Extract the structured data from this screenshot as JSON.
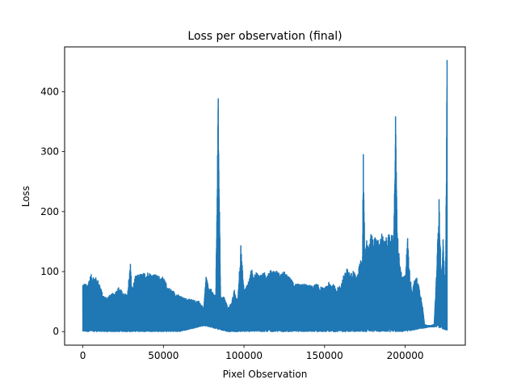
{
  "chart_data": {
    "type": "line",
    "title": "Loss per observation (final)",
    "xlabel": "Pixel Observation",
    "ylabel": "Loss",
    "xlim": [
      -11300,
      237300
    ],
    "ylim": [
      -22.6,
      474.6
    ],
    "x_ticks": [
      0,
      50000,
      100000,
      150000,
      200000
    ],
    "x_tick_labels": [
      "0",
      "50000",
      "100000",
      "150000",
      "200000"
    ],
    "y_ticks": [
      0,
      100,
      200,
      300,
      400
    ],
    "y_tick_labels": [
      "0",
      "100",
      "200",
      "300",
      "400"
    ],
    "grid": false,
    "series": [
      {
        "color": "#1f77b4",
        "envelope": [
          [
            0,
            82
          ],
          [
            2500,
            78
          ],
          [
            5000,
            95
          ],
          [
            7500,
            92
          ],
          [
            10000,
            84
          ],
          [
            12500,
            60
          ],
          [
            15000,
            58
          ],
          [
            17500,
            62
          ],
          [
            20000,
            66
          ],
          [
            22500,
            75
          ],
          [
            25000,
            64
          ],
          [
            27500,
            62
          ],
          [
            29500,
            112
          ],
          [
            30500,
            70
          ],
          [
            32500,
            92
          ],
          [
            35000,
            96
          ],
          [
            37500,
            97
          ],
          [
            40000,
            100
          ],
          [
            42500,
            97
          ],
          [
            45000,
            95
          ],
          [
            47500,
            93
          ],
          [
            50000,
            90
          ],
          [
            52500,
            76
          ],
          [
            55000,
            70
          ],
          [
            57500,
            65
          ],
          [
            60000,
            60
          ],
          [
            62500,
            56
          ],
          [
            65000,
            55
          ],
          [
            67500,
            54
          ],
          [
            70000,
            52
          ],
          [
            72500,
            50
          ],
          [
            75000,
            38
          ],
          [
            76500,
            96
          ],
          [
            78000,
            72
          ],
          [
            80000,
            70
          ],
          [
            82500,
            58
          ],
          [
            84000,
            388
          ],
          [
            85500,
            55
          ],
          [
            87500,
            60
          ],
          [
            90000,
            40
          ],
          [
            92500,
            50
          ],
          [
            94000,
            70
          ],
          [
            96000,
            50
          ],
          [
            98000,
            143
          ],
          [
            100000,
            70
          ],
          [
            102500,
            80
          ],
          [
            104500,
            106
          ],
          [
            106000,
            90
          ],
          [
            107500,
            100
          ],
          [
            110000,
            95
          ],
          [
            112500,
            98
          ],
          [
            115000,
            100
          ],
          [
            117500,
            103
          ],
          [
            120000,
            102
          ],
          [
            122500,
            96
          ],
          [
            125000,
            100
          ],
          [
            127500,
            92
          ],
          [
            130000,
            86
          ],
          [
            132500,
            80
          ],
          [
            135000,
            78
          ],
          [
            137500,
            80
          ],
          [
            140000,
            78
          ],
          [
            142500,
            76
          ],
          [
            145000,
            80
          ],
          [
            147500,
            75
          ],
          [
            150000,
            72
          ],
          [
            152500,
            82
          ],
          [
            155000,
            80
          ],
          [
            157500,
            72
          ],
          [
            160000,
            78
          ],
          [
            162500,
            100
          ],
          [
            164000,
            105
          ],
          [
            166000,
            96
          ],
          [
            168000,
            103
          ],
          [
            170000,
            90
          ],
          [
            172000,
            118
          ],
          [
            173500,
            120
          ],
          [
            174000,
            295
          ],
          [
            175000,
            130
          ],
          [
            176000,
            162
          ],
          [
            177500,
            140
          ],
          [
            179000,
            166
          ],
          [
            180500,
            155
          ],
          [
            182000,
            160
          ],
          [
            184000,
            148
          ],
          [
            185500,
            166
          ],
          [
            187000,
            150
          ],
          [
            188500,
            158
          ],
          [
            190000,
            162
          ],
          [
            191500,
            164
          ],
          [
            193000,
            162
          ],
          [
            194000,
            358
          ],
          [
            195000,
            175
          ],
          [
            196500,
            118
          ],
          [
            198000,
            90
          ],
          [
            200000,
            95
          ],
          [
            201500,
            155
          ],
          [
            203000,
            90
          ],
          [
            204500,
            70
          ],
          [
            206000,
            88
          ],
          [
            207500,
            90
          ],
          [
            209000,
            70
          ],
          [
            210500,
            50
          ],
          [
            212000,
            12
          ],
          [
            214000,
            10
          ],
          [
            216000,
            10
          ],
          [
            218000,
            12
          ],
          [
            219500,
            100
          ],
          [
            221000,
            220
          ],
          [
            222500,
            80
          ],
          [
            223500,
            153
          ],
          [
            225000,
            60
          ],
          [
            226000,
            452
          ]
        ],
        "floor": [
          [
            0,
            0
          ],
          [
            20000,
            0
          ],
          [
            40000,
            0
          ],
          [
            60000,
            0
          ],
          [
            75000,
            10
          ],
          [
            90000,
            0
          ],
          [
            120000,
            0
          ],
          [
            150000,
            0
          ],
          [
            175000,
            0
          ],
          [
            200000,
            0
          ],
          [
            210000,
            5
          ],
          [
            215000,
            8
          ],
          [
            220000,
            8
          ],
          [
            226000,
            2
          ]
        ]
      }
    ]
  }
}
